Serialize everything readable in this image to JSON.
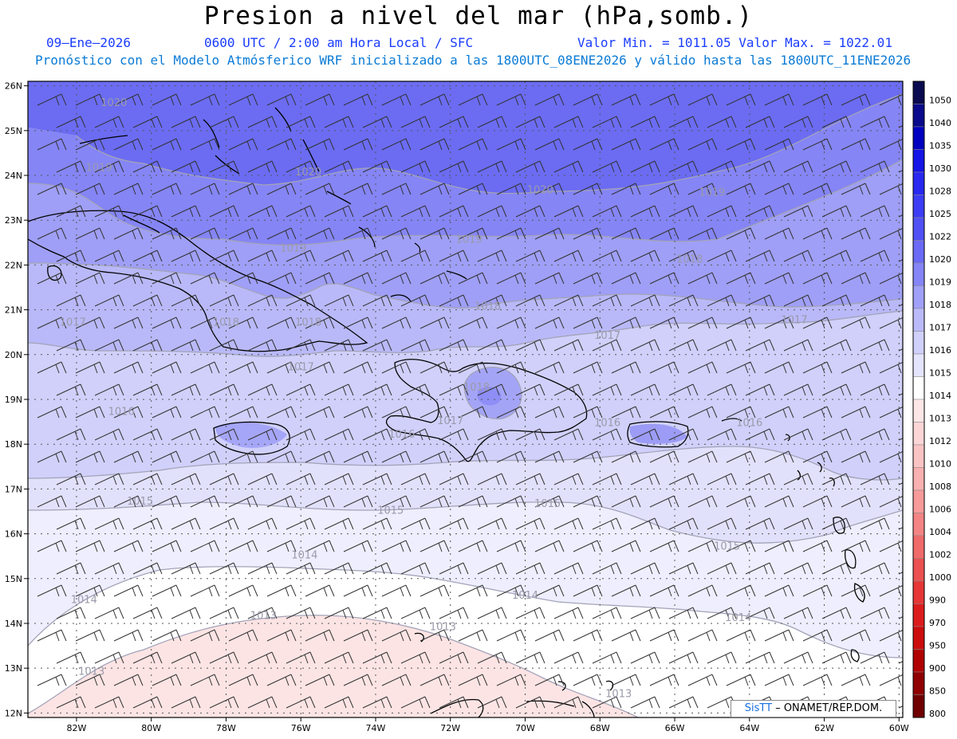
{
  "header": {
    "title": "Presion a nivel del mar (hPa,somb.)",
    "date": "09–Ene–2026",
    "time": "0600 UTC / 2:00 am Hora Local / SFC",
    "min_max": "Valor Min. = 1011.05  Valor Max. = 1022.01",
    "forecast": "Pronóstico con el Modelo Atmósferico WRF inicializado a las 1800UTC_08ENE2026 y válido hasta las  1800UTC_11ENE2026"
  },
  "map": {
    "lat_ticks": [
      "26N",
      "25N",
      "24N",
      "23N",
      "22N",
      "21N",
      "20N",
      "19N",
      "18N",
      "17N",
      "16N",
      "15N",
      "14N",
      "13N",
      "12N"
    ],
    "lon_ticks": [
      "82W",
      "80W",
      "78W",
      "76W",
      "74W",
      "72W",
      "70W",
      "68W",
      "66W",
      "64W",
      "62W",
      "60W"
    ],
    "contour_labels": [
      {
        "text": "1020",
        "lon": -81.0,
        "lat": 25.55
      },
      {
        "text": "1020",
        "lon": -75.8,
        "lat": 24.0
      },
      {
        "text": "1020",
        "lon": -69.6,
        "lat": 23.6
      },
      {
        "text": "1019",
        "lon": -81.4,
        "lat": 24.1
      },
      {
        "text": "1019",
        "lon": -76.2,
        "lat": 22.3
      },
      {
        "text": "1019",
        "lon": -71.5,
        "lat": 22.5
      },
      {
        "text": "1019",
        "lon": -65.0,
        "lat": 23.55
      },
      {
        "text": "1018",
        "lon": -65.6,
        "lat": 22.05
      },
      {
        "text": "1018",
        "lon": -71.0,
        "lat": 21.0
      },
      {
        "text": "1018",
        "lon": -78.0,
        "lat": 20.65
      },
      {
        "text": "1018",
        "lon": -75.8,
        "lat": 20.65
      },
      {
        "text": "1018",
        "lon": -71.3,
        "lat": 19.2
      },
      {
        "text": "1017",
        "lon": -82.1,
        "lat": 20.65
      },
      {
        "text": "1017",
        "lon": -67.8,
        "lat": 20.35
      },
      {
        "text": "1017",
        "lon": -62.8,
        "lat": 20.7
      },
      {
        "text": "1017",
        "lon": -76.0,
        "lat": 19.65
      },
      {
        "text": "1017",
        "lon": -72.0,
        "lat": 18.45
      },
      {
        "text": "1016",
        "lon": -80.8,
        "lat": 18.65
      },
      {
        "text": "1016",
        "lon": -73.3,
        "lat": 18.15
      },
      {
        "text": "1016",
        "lon": -67.8,
        "lat": 18.4
      },
      {
        "text": "1016",
        "lon": -64.0,
        "lat": 18.4
      },
      {
        "text": "1015",
        "lon": -80.3,
        "lat": 16.65
      },
      {
        "text": "1015",
        "lon": -73.6,
        "lat": 16.45
      },
      {
        "text": "1015",
        "lon": -69.4,
        "lat": 16.6
      },
      {
        "text": "1015",
        "lon": -64.6,
        "lat": 15.65
      },
      {
        "text": "1014",
        "lon": -75.9,
        "lat": 15.45
      },
      {
        "text": "1014",
        "lon": -81.8,
        "lat": 14.45
      },
      {
        "text": "1014",
        "lon": -70.0,
        "lat": 14.55
      },
      {
        "text": "1014",
        "lon": -64.3,
        "lat": 14.05
      },
      {
        "text": "1013",
        "lon": -77.0,
        "lat": 14.1
      },
      {
        "text": "1013",
        "lon": -72.2,
        "lat": 13.85
      },
      {
        "text": "1013",
        "lon": -81.6,
        "lat": 12.85
      },
      {
        "text": "1013",
        "lon": -67.5,
        "lat": 12.35
      }
    ]
  },
  "legend": {
    "levels": [
      "1050",
      "1040",
      "1035",
      "1030",
      "1028",
      "1025",
      "1022",
      "1020",
      "1019",
      "1018",
      "1017",
      "1016",
      "1015",
      "1014",
      "1013",
      "1012",
      "1010",
      "1008",
      "1006",
      "1004",
      "1002",
      "1000",
      "990",
      "970",
      "950",
      "900",
      "850",
      "800"
    ],
    "colors": [
      "#0a0a50",
      "#0a0a8c",
      "#0000c0",
      "#1414e6",
      "#2828f0",
      "#3c3cf5",
      "#5050f5",
      "#6a6af6",
      "#8585f7",
      "#a0a0f8",
      "#babafa",
      "#d0d0fb",
      "#e4e4fd",
      "#ffffff",
      "#fde6e6",
      "#fcd6d6",
      "#fbc4c4",
      "#f9b0b0",
      "#f79a9a",
      "#f48484",
      "#f06a6a",
      "#ec5050",
      "#e63636",
      "#dc1c1c",
      "#cc0c0c",
      "#b00000",
      "#900000",
      "#700000"
    ]
  },
  "credit": {
    "brand": "SisTT",
    "org": " – ONAMET/REP.DOM."
  }
}
